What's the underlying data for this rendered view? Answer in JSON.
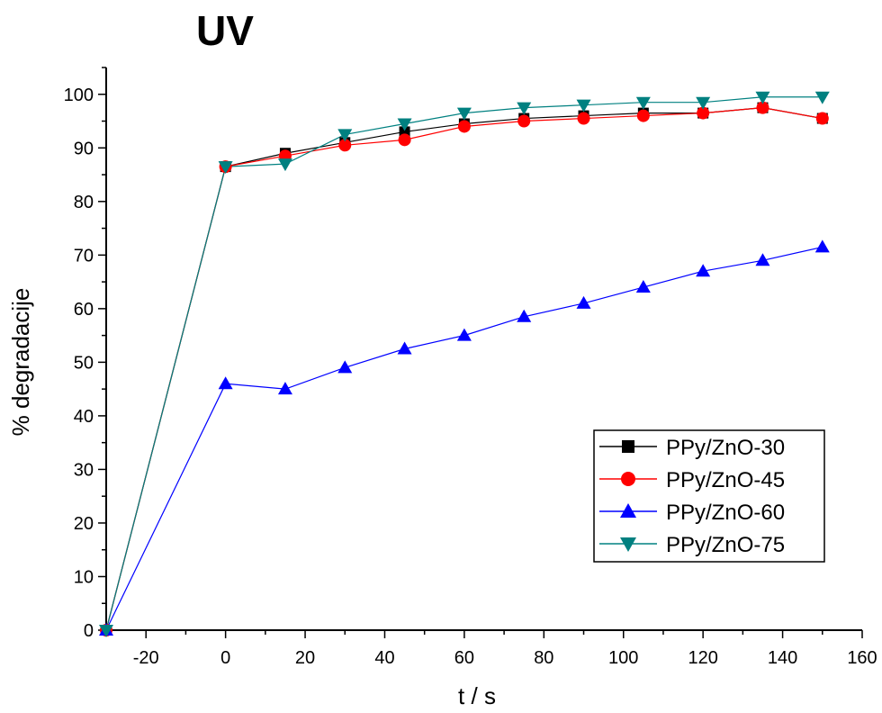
{
  "chart_data": {
    "type": "line",
    "title": "UV",
    "xlabel": "t / s",
    "ylabel": "% degradacije",
    "xlim": [
      -30,
      160
    ],
    "ylim": [
      0,
      105
    ],
    "xticks": [
      -20,
      0,
      20,
      40,
      60,
      80,
      100,
      120,
      140,
      160
    ],
    "yticks": [
      0,
      10,
      20,
      30,
      40,
      50,
      60,
      70,
      80,
      90,
      100
    ],
    "legend_position": "bottom-right",
    "grid": false,
    "x": [
      -30,
      0,
      15,
      30,
      45,
      60,
      75,
      90,
      105,
      120,
      135,
      150
    ],
    "series": [
      {
        "name": "PPy/ZnO-30",
        "color": "#000000",
        "marker": "square",
        "values": [
          0,
          86.5,
          89,
          91,
          93,
          94.5,
          95.5,
          96,
          96.5,
          96.5,
          97.5,
          95.5
        ]
      },
      {
        "name": "PPy/ZnO-45",
        "color": "#ff0000",
        "marker": "circle",
        "values": [
          0,
          86.5,
          88.5,
          90.5,
          91.5,
          94,
          95,
          95.5,
          96,
          96.5,
          97.5,
          95.5
        ]
      },
      {
        "name": "PPy/ZnO-60",
        "color": "#0000ff",
        "marker": "triangle-up",
        "values": [
          0,
          46,
          45,
          49,
          52.5,
          55,
          58.5,
          61,
          64,
          67,
          69,
          71.5
        ]
      },
      {
        "name": "PPy/ZnO-75",
        "color": "#008080",
        "marker": "triangle-down",
        "values": [
          0,
          86.5,
          87,
          92.5,
          94.5,
          96.5,
          97.5,
          98,
          98.5,
          98.5,
          99.5,
          99.5
        ]
      }
    ]
  }
}
